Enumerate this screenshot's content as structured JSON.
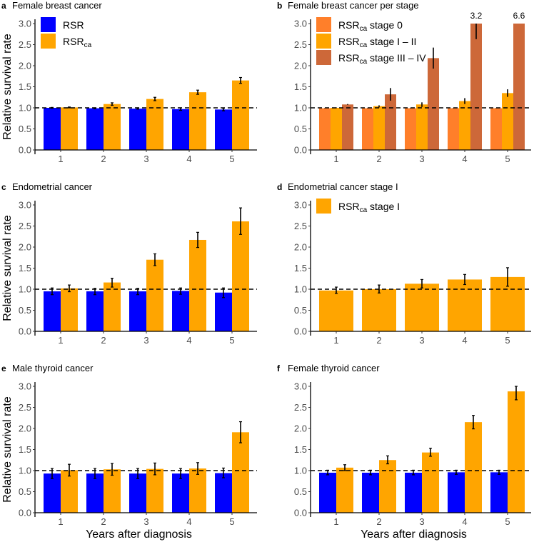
{
  "colors": {
    "rsr": "#0000FF",
    "rsr_ca": "#FFA500",
    "stage0": "#FF7F2A",
    "stage12": "#FFA500",
    "stage34": "#CD6839"
  },
  "chart_data": [
    {
      "id": "a",
      "type": "bar",
      "panel_label": "a",
      "title": "Female breast cancer",
      "xlabel": "",
      "ylabel": "Relative survival rate",
      "categories": [
        "1",
        "2",
        "3",
        "4",
        "5"
      ],
      "ylim": [
        0,
        3.0
      ],
      "yticks": [
        "0.0",
        "0.5",
        "1.0",
        "1.5",
        "2.0",
        "2.5",
        "3.0"
      ],
      "reference_line": 1.0,
      "legend": "top-left",
      "series": [
        {
          "name": "RSR",
          "name_sub": "",
          "color_key": "rsr",
          "values": [
            1.0,
            0.99,
            0.98,
            0.97,
            0.96
          ],
          "err_low": [
            0.99,
            0.98,
            0.97,
            0.94,
            0.93
          ],
          "err_high": [
            1.01,
            1.0,
            1.0,
            1.0,
            0.99
          ]
        },
        {
          "name": "RSR",
          "name_sub": "ca",
          "color_key": "rsr_ca",
          "values": [
            1.01,
            1.09,
            1.21,
            1.37,
            1.65
          ],
          "err_low": [
            1.0,
            1.06,
            1.17,
            1.32,
            1.58
          ],
          "err_high": [
            1.02,
            1.12,
            1.25,
            1.42,
            1.72
          ]
        }
      ]
    },
    {
      "id": "b",
      "type": "bar",
      "panel_label": "b",
      "title": "Female breast cancer per stage",
      "xlabel": "",
      "ylabel": "",
      "categories": [
        "1",
        "2",
        "3",
        "4",
        "5"
      ],
      "ylim": [
        0,
        3.0
      ],
      "yticks": [
        "0.0",
        "0.5",
        "1.0",
        "1.5",
        "2.0",
        "2.5",
        "3.0"
      ],
      "reference_line": 1.0,
      "legend": "top-left",
      "series": [
        {
          "name": "RSR",
          "name_sub": "ca",
          "name_suffix": " stage 0",
          "color_key": "stage0",
          "values": [
            0.99,
            0.99,
            0.99,
            0.99,
            0.99
          ],
          "err_low": [
            0.99,
            0.99,
            0.99,
            0.99,
            0.99
          ],
          "err_high": [
            1.0,
            1.0,
            1.0,
            1.0,
            1.0
          ]
        },
        {
          "name": "RSR",
          "name_sub": "ca",
          "name_suffix": " stage I – II",
          "color_key": "stage12",
          "values": [
            1.0,
            1.04,
            1.08,
            1.16,
            1.35
          ],
          "err_low": [
            0.99,
            1.01,
            1.02,
            1.09,
            1.26
          ],
          "err_high": [
            1.01,
            1.06,
            1.13,
            1.23,
            1.44
          ]
        },
        {
          "name": "RSR",
          "name_sub": "ca",
          "name_suffix": " stage III – IV",
          "color_key": "stage34",
          "values": [
            1.08,
            1.32,
            2.18,
            3.2,
            6.6
          ],
          "err_low": [
            1.07,
            1.17,
            1.93,
            2.63,
            null
          ],
          "err_high": [
            1.09,
            1.47,
            2.43,
            3.1,
            null
          ]
        }
      ],
      "annotations": [
        {
          "category": "4",
          "text": "3.2"
        },
        {
          "category": "5",
          "text": "6.6"
        }
      ]
    },
    {
      "id": "c",
      "type": "bar",
      "panel_label": "c",
      "title": "Endometrial cancer",
      "xlabel": "",
      "ylabel": "Relative survival rate",
      "categories": [
        "1",
        "2",
        "3",
        "4",
        "5"
      ],
      "ylim": [
        0,
        3.0
      ],
      "yticks": [
        "0.0",
        "0.5",
        "1.0",
        "1.5",
        "2.0",
        "2.5",
        "3.0"
      ],
      "reference_line": 1.0,
      "series": [
        {
          "name": "RSR",
          "name_sub": "",
          "color_key": "rsr",
          "values": [
            0.95,
            0.95,
            0.95,
            0.96,
            0.92
          ],
          "err_low": [
            0.87,
            0.87,
            0.87,
            0.88,
            0.8
          ],
          "err_high": [
            1.03,
            1.02,
            1.02,
            1.03,
            1.03
          ]
        },
        {
          "name": "RSR",
          "name_sub": "ca",
          "color_key": "rsr_ca",
          "values": [
            1.02,
            1.16,
            1.7,
            2.17,
            2.61
          ],
          "err_low": [
            0.94,
            1.05,
            1.56,
            1.99,
            2.3
          ],
          "err_high": [
            1.1,
            1.26,
            1.84,
            2.35,
            2.93
          ]
        }
      ]
    },
    {
      "id": "d",
      "type": "bar",
      "panel_label": "d",
      "title": "Endometrial cancer stage I",
      "xlabel": "",
      "ylabel": "",
      "categories": [
        "1",
        "2",
        "3",
        "4",
        "5"
      ],
      "ylim": [
        0,
        3.0
      ],
      "yticks": [
        "0.0",
        "0.5",
        "1.0",
        "1.5",
        "2.0",
        "2.5",
        "3.0"
      ],
      "reference_line": 1.0,
      "legend": "top-left",
      "series": [
        {
          "name": "RSR",
          "name_sub": "ca",
          "name_suffix": " stage I",
          "color_key": "rsr_ca",
          "values": [
            0.97,
            1.0,
            1.13,
            1.23,
            1.29
          ],
          "err_low": [
            0.9,
            0.91,
            1.03,
            1.11,
            1.07
          ],
          "err_high": [
            1.05,
            1.1,
            1.23,
            1.35,
            1.51
          ]
        }
      ]
    },
    {
      "id": "e",
      "type": "bar",
      "panel_label": "e",
      "title": "Male thyroid cancer",
      "xlabel": "Years after diagnosis",
      "ylabel": "Relative survival rate",
      "categories": [
        "1",
        "2",
        "3",
        "4",
        "5"
      ],
      "ylim": [
        0,
        3.0
      ],
      "yticks": [
        "0.0",
        "0.5",
        "1.0",
        "1.5",
        "2.0",
        "2.5",
        "3.0"
      ],
      "reference_line": 1.0,
      "series": [
        {
          "name": "RSR",
          "name_sub": "",
          "color_key": "rsr",
          "values": [
            0.93,
            0.93,
            0.93,
            0.93,
            0.94
          ],
          "err_low": [
            0.81,
            0.81,
            0.81,
            0.81,
            0.83
          ],
          "err_high": [
            1.05,
            1.05,
            1.05,
            1.05,
            1.06
          ]
        },
        {
          "name": "RSR",
          "name_sub": "ca",
          "color_key": "rsr_ca",
          "values": [
            1.01,
            1.03,
            1.04,
            1.05,
            1.91
          ],
          "err_low": [
            0.87,
            0.89,
            0.9,
            0.91,
            1.66
          ],
          "err_high": [
            1.15,
            1.17,
            1.18,
            1.19,
            2.16
          ]
        }
      ]
    },
    {
      "id": "f",
      "type": "bar",
      "panel_label": "f",
      "title": "Female thyroid cancer",
      "xlabel": "Years after diagnosis",
      "ylabel": "",
      "categories": [
        "1",
        "2",
        "3",
        "4",
        "5"
      ],
      "ylim": [
        0,
        3.0
      ],
      "yticks": [
        "0.0",
        "0.5",
        "1.0",
        "1.5",
        "2.0",
        "2.5",
        "3.0"
      ],
      "reference_line": 1.0,
      "series": [
        {
          "name": "RSR",
          "name_sub": "",
          "color_key": "rsr",
          "values": [
            0.95,
            0.95,
            0.95,
            0.96,
            0.96
          ],
          "err_low": [
            0.9,
            0.9,
            0.9,
            0.91,
            0.91
          ],
          "err_high": [
            1.01,
            1.01,
            1.01,
            1.01,
            1.01
          ]
        },
        {
          "name": "RSR",
          "name_sub": "ca",
          "color_key": "rsr_ca",
          "values": [
            1.07,
            1.25,
            1.43,
            2.15,
            2.88
          ],
          "err_low": [
            1.0,
            1.16,
            1.34,
            1.99,
            2.68
          ],
          "err_high": [
            1.14,
            1.35,
            1.53,
            2.31,
            3.08
          ]
        }
      ]
    }
  ]
}
